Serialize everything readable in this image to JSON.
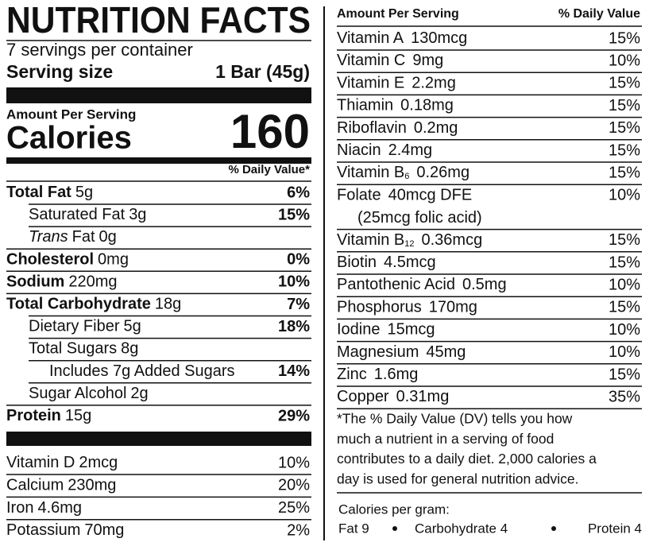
{
  "title": "NUTRITION FACTS",
  "servings": "7 servings per container",
  "serving_size": {
    "label": "Serving size",
    "value": "1 Bar (45g)"
  },
  "calories": {
    "header": "Amount Per Serving",
    "label": "Calories",
    "value": "160"
  },
  "dv_header": "% Daily Value*",
  "nutrients": [
    {
      "name": "Total Fat",
      "amount": "5g",
      "dv": "6%",
      "level": 0
    },
    {
      "name": "Saturated Fat",
      "amount": "3g",
      "dv": "15%",
      "level": 1
    },
    {
      "italic": "Trans",
      "name": "Fat",
      "amount": "0g",
      "level": 1
    },
    {
      "name": "Cholesterol",
      "amount": "0mg",
      "dv": "0%",
      "level": 0
    },
    {
      "name": "Sodium",
      "amount": "220mg",
      "dv": "10%",
      "level": 0
    },
    {
      "name": "Total Carbohydrate",
      "amount": "18g",
      "dv": "7%",
      "level": 0
    },
    {
      "name": "Dietary Fiber",
      "amount": "5g",
      "dv": "18%",
      "level": 1
    },
    {
      "name": "Total Sugars",
      "amount": "8g",
      "level": 1
    },
    {
      "name": "Includes 7g Added Sugars",
      "dv": "14%",
      "level": 2
    },
    {
      "name": "Sugar Alcohol",
      "amount": "2g",
      "level": 1
    },
    {
      "name": "Protein",
      "amount": "15g",
      "dv": "29%",
      "level": 0
    }
  ],
  "vitamins": [
    {
      "name": "Vitamin D",
      "amount": "2mcg",
      "dv": "10%"
    },
    {
      "name": "Calcium",
      "amount": "230mg",
      "dv": "20%"
    },
    {
      "name": "Iron",
      "amount": "4.6mg",
      "dv": "25%"
    },
    {
      "name": "Potassium",
      "amount": "70mg",
      "dv": "2%"
    }
  ],
  "right": {
    "header_amount": "Amount Per Serving",
    "header_dv": "% Daily Value",
    "nutrients": [
      {
        "name": "Vitamin A",
        "amount": "130mcg",
        "dv": "15%"
      },
      {
        "name": "Vitamin C",
        "amount": "9mg",
        "dv": "10%"
      },
      {
        "name": "Vitamin E",
        "amount": "2.2mg",
        "dv": "15%"
      },
      {
        "name": "Thiamin",
        "amount": "0.18mg",
        "dv": "15%"
      },
      {
        "name": "Riboflavin",
        "amount": "0.2mg",
        "dv": "15%"
      },
      {
        "name": "Niacin",
        "amount": "2.4mg",
        "dv": "15%"
      },
      {
        "name": "Vitamin B",
        "sub": "6",
        "amount": "0.26mg",
        "dv": "15%"
      },
      {
        "name": "Folate",
        "amount": "40mcg DFE",
        "dv": "10%",
        "note": "(25mcg folic acid)"
      },
      {
        "name": "Vitamin B",
        "sub": "12",
        "amount": "0.36mcg",
        "dv": "15%"
      },
      {
        "name": "Biotin",
        "amount": "4.5mcg",
        "dv": "15%"
      },
      {
        "name": "Pantothenic Acid",
        "amount": "0.5mg",
        "dv": "10%"
      },
      {
        "name": "Phosphorus",
        "amount": "170mg",
        "dv": "15%"
      },
      {
        "name": "Iodine",
        "amount": "15mcg",
        "dv": "10%"
      },
      {
        "name": "Magnesium",
        "amount": "45mg",
        "dv": "10%"
      },
      {
        "name": "Zinc",
        "amount": "1.6mg",
        "dv": "15%"
      },
      {
        "name": "Copper",
        "amount": "0.31mg",
        "dv": "35%"
      }
    ],
    "footnote": [
      "*The % Daily Value (DV) tells you how",
      "much a nutrient in a serving of food",
      "contributes to a daily diet. 2,000 calories a",
      "day is used for general nutrition advice."
    ],
    "calories_per_gram": {
      "label": "Calories per gram:",
      "items": [
        "Fat 9",
        "Carbohydrate 4",
        "Protein 4"
      ]
    }
  }
}
